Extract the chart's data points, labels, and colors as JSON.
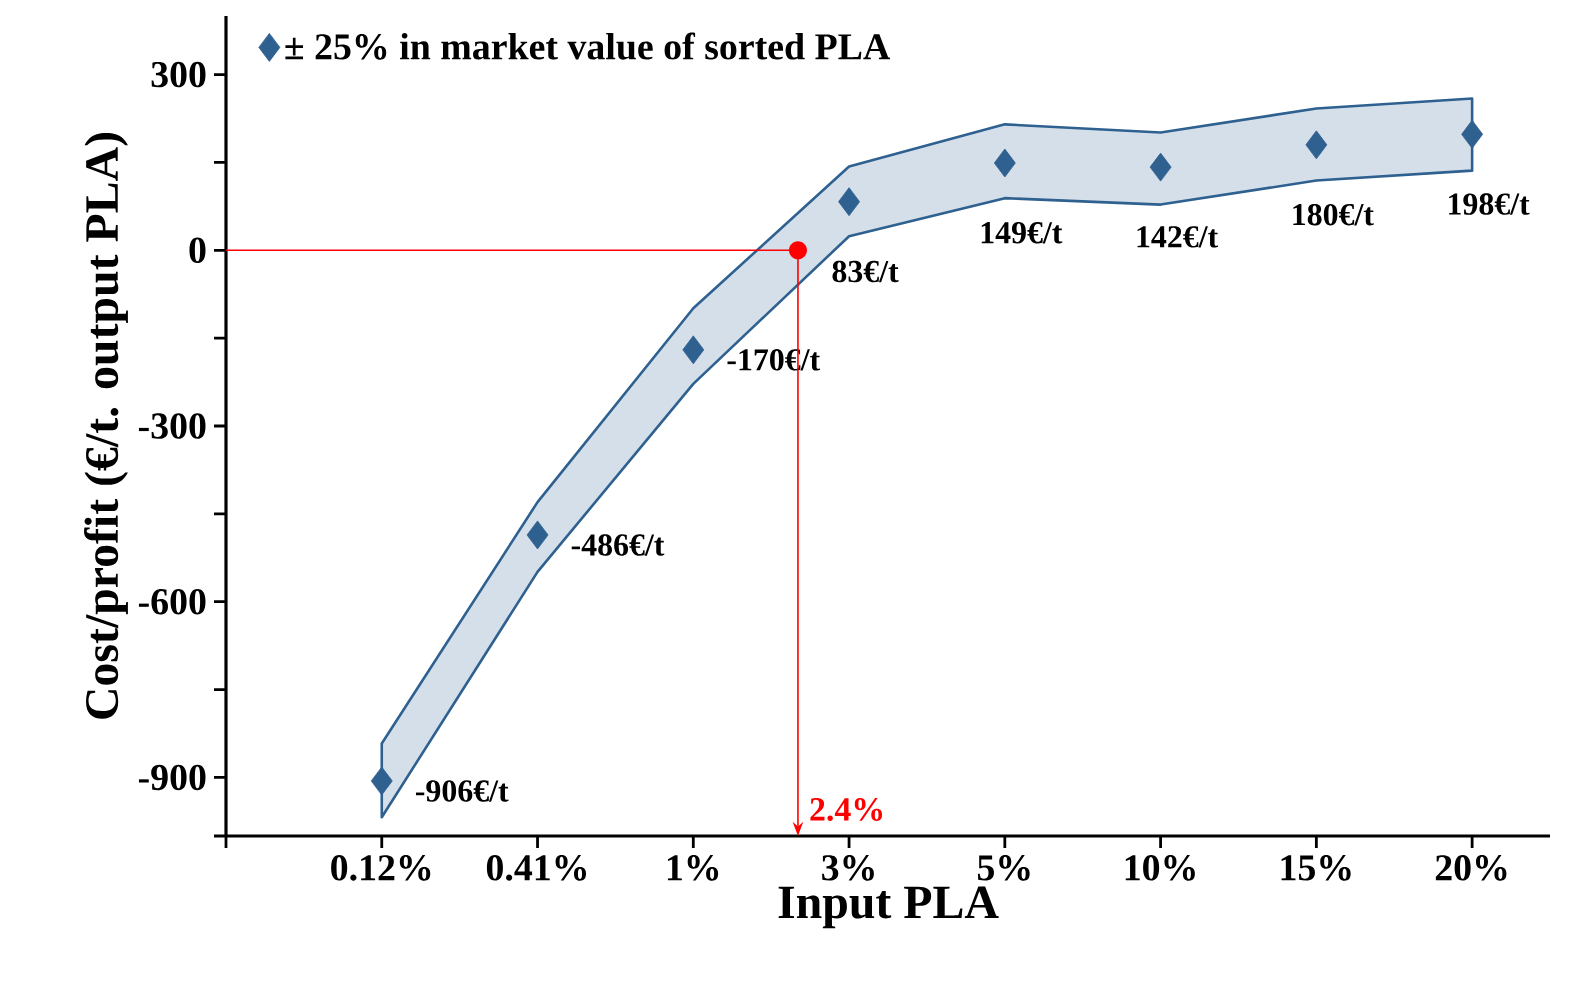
{
  "chart_data": {
    "type": "scatter",
    "xlabel": "Input PLA",
    "ylabel": "Cost/profit (€/t. output PLA)",
    "categories": [
      "0.12%",
      "0.41%",
      "1%",
      "3%",
      "5%",
      "10%",
      "15%",
      "20%"
    ],
    "series": [
      {
        "name": "± 25% in market value of sorted PLA",
        "color": "#2e6090",
        "values": [
          -906,
          -486,
          -170,
          83,
          149,
          142,
          180,
          198
        ],
        "value_labels": [
          "-906€/t",
          "-486€/t",
          "-170€/t",
          "83€/t",
          "149€/t",
          "142€/t",
          "180€/t",
          "198€/t"
        ],
        "lower": [
          -968,
          -549,
          -228,
          24,
          89,
          78,
          119,
          136
        ],
        "upper": [
          -842,
          -430,
          -99,
          143,
          215,
          201,
          242,
          259
        ]
      }
    ],
    "ylim": [
      -1000,
      400
    ],
    "yticks": [
      {
        "value": -1000,
        "label": null
      },
      -900,
      {
        "value": -750,
        "label": null
      },
      -600,
      {
        "value": -450,
        "label": null
      },
      -300,
      {
        "value": -150,
        "label": null
      },
      0,
      {
        "value": 150,
        "label": null
      },
      300
    ],
    "marker": "diamond",
    "legend": "top left",
    "ref_lines": [
      {
        "axis": "y",
        "value": 0,
        "color": "#ff0000"
      }
    ],
    "annotations": [
      "2.4%"
    ]
  }
}
